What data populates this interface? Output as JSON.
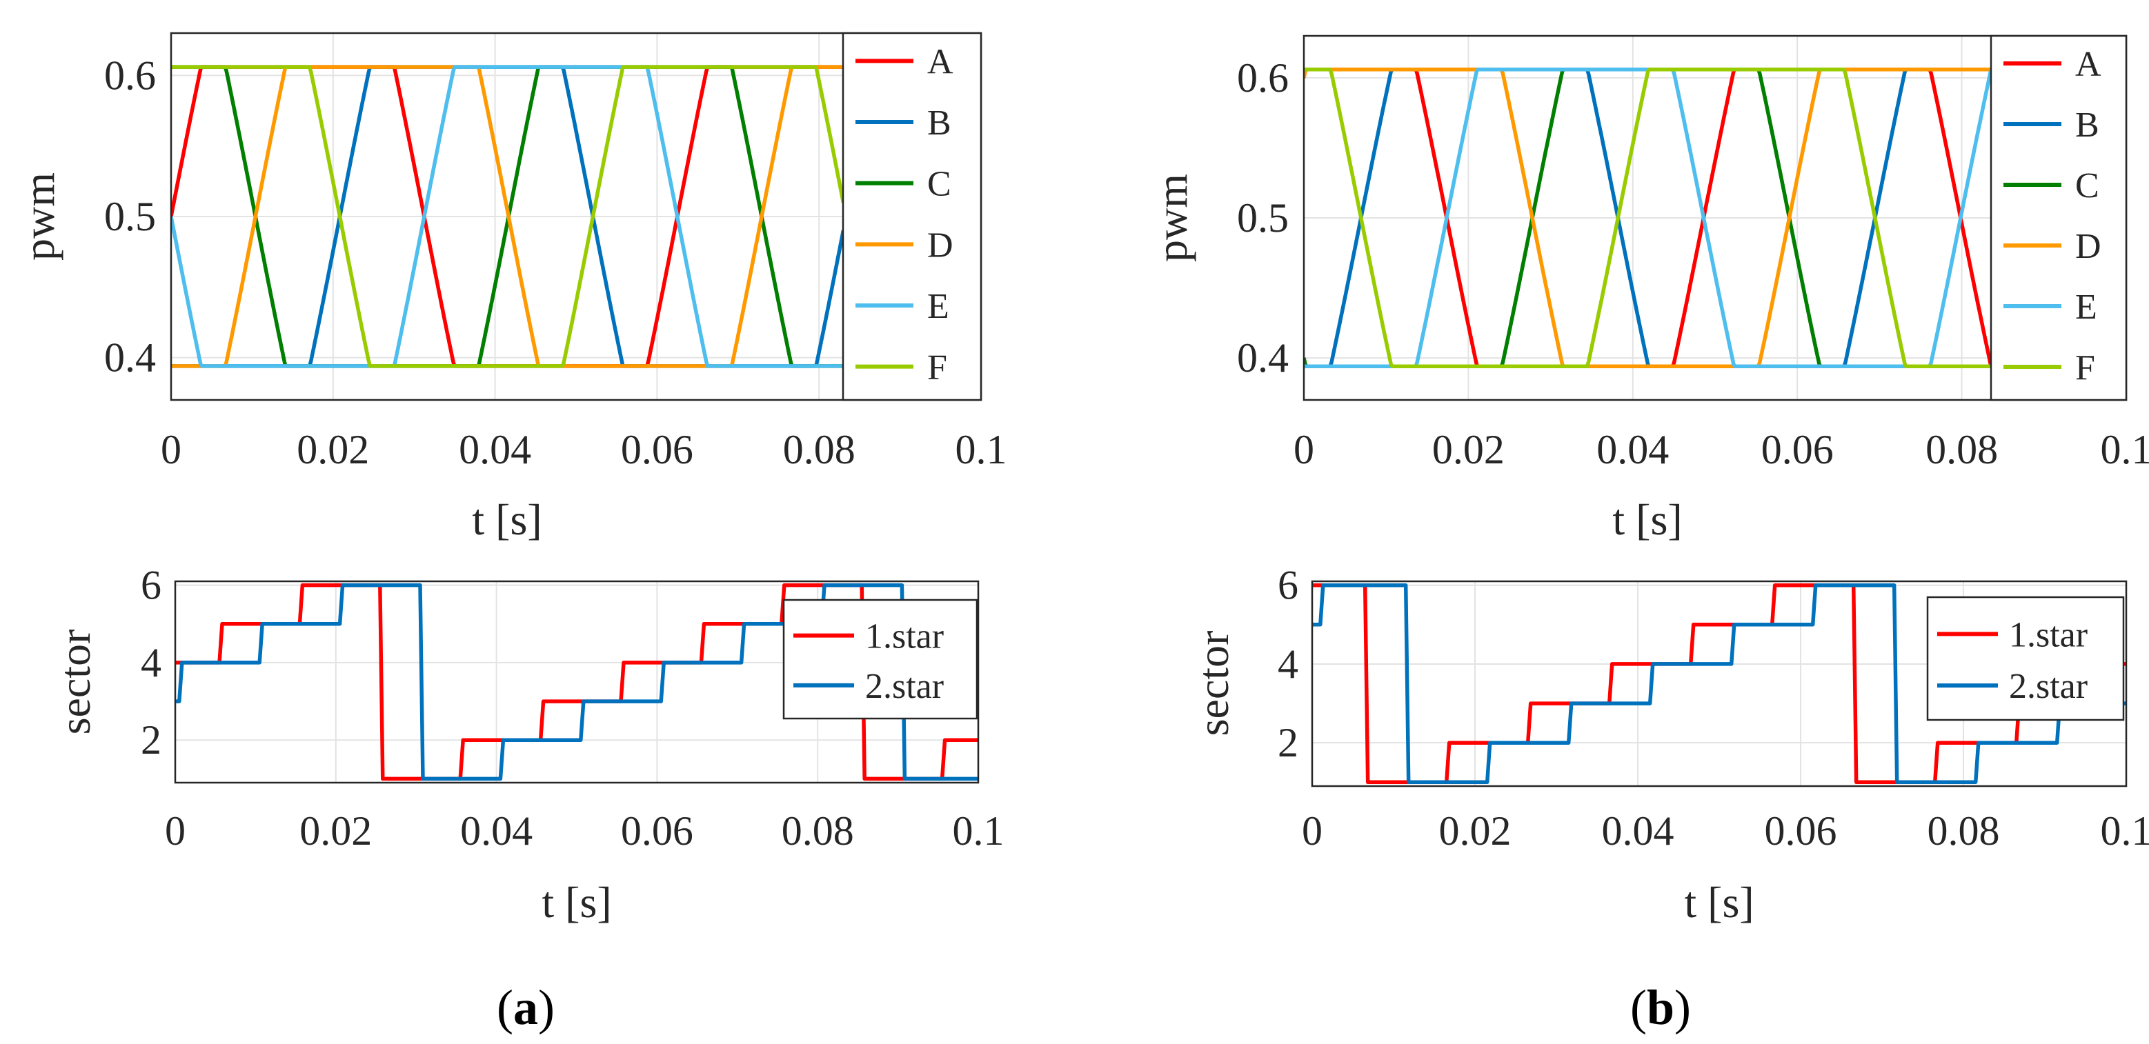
{
  "colors": {
    "A": "#ff0000",
    "B": "#0072bd",
    "C": "#007f00",
    "D": "#ff9900",
    "E": "#4dbeee",
    "F": "#99cc00",
    "star1": "#ff0000",
    "star2": "#0072bd",
    "grid": "#e3e3e3",
    "axis": "#262626"
  },
  "chart_data": [
    {
      "panel": "a",
      "type": "line",
      "title": "",
      "xlabel": "t [s]",
      "ylabel": "pwm",
      "xlim": [
        0,
        0.1
      ],
      "ylim": [
        0.37,
        0.63
      ],
      "xticks": [
        "0",
        "0.02",
        "0.04",
        "0.06",
        "0.08",
        "0.1"
      ],
      "xtick_values": [
        0,
        0.02,
        0.04,
        0.06,
        0.08,
        0.1
      ],
      "yticks": [
        "0.4",
        "0.5",
        "0.6"
      ],
      "ytick_values": [
        0.4,
        0.5,
        0.6
      ],
      "grid": true,
      "legend_position": "right-outside",
      "t_end": 0.083,
      "period": 0.0625,
      "series": [
        {
          "name": "A",
          "color_key": "A",
          "phase_deg": 0
        },
        {
          "name": "B",
          "color_key": "B",
          "phase_deg": -120
        },
        {
          "name": "C",
          "color_key": "C",
          "phase_deg": -240
        },
        {
          "name": "D",
          "color_key": "D",
          "phase_deg": -60
        },
        {
          "name": "E",
          "color_key": "E",
          "phase_deg": -180
        },
        {
          "name": "F",
          "color_key": "F",
          "phase_deg": -300
        }
      ],
      "phase_offset_deg": 0,
      "center": 0.5,
      "limit": 0.5,
      "peak_raw": 0.577,
      "scale": 0.2
    },
    {
      "panel": "a",
      "type": "line",
      "title": "",
      "xlabel": "t [s]",
      "ylabel": "sector",
      "xlim": [
        0,
        0.1
      ],
      "ylim": [
        0.9,
        6.1
      ],
      "xticks": [
        "0",
        "0.02",
        "0.04",
        "0.06",
        "0.08",
        "0.1"
      ],
      "xtick_values": [
        0,
        0.02,
        0.04,
        0.06,
        0.08,
        0.1
      ],
      "yticks": [
        "2",
        "4",
        "6"
      ],
      "ytick_values": [
        2,
        4,
        6
      ],
      "grid": true,
      "legend_position": "top-right",
      "series": [
        {
          "name": "1.star",
          "color_key": "star1",
          "steps": [
            [
              0,
              4
            ],
            [
              0.0055,
              5
            ],
            [
              0.0155,
              6
            ],
            [
              0.0255,
              1
            ],
            [
              0.0355,
              2
            ],
            [
              0.0455,
              3
            ],
            [
              0.0555,
              4
            ],
            [
              0.0655,
              5
            ],
            [
              0.0755,
              6
            ],
            [
              0.0855,
              1
            ],
            [
              0.0955,
              2
            ],
            [
              0.1,
              2
            ]
          ]
        },
        {
          "name": "2.star",
          "color_key": "star2",
          "steps": [
            [
              0,
              3
            ],
            [
              0.0005,
              4
            ],
            [
              0.0105,
              5
            ],
            [
              0.0205,
              6
            ],
            [
              0.0305,
              1
            ],
            [
              0.0405,
              2
            ],
            [
              0.0505,
              3
            ],
            [
              0.0605,
              4
            ],
            [
              0.0705,
              5
            ],
            [
              0.0805,
              6
            ],
            [
              0.0905,
              1
            ],
            [
              0.1,
              1
            ]
          ]
        }
      ]
    },
    {
      "panel": "b",
      "type": "line",
      "title": "",
      "xlabel": "t [s]",
      "ylabel": "pwm",
      "xlim": [
        0,
        0.1
      ],
      "ylim": [
        0.37,
        0.63
      ],
      "xticks": [
        "0",
        "0.02",
        "0.04",
        "0.06",
        "0.08",
        "0.1"
      ],
      "xtick_values": [
        0,
        0.02,
        0.04,
        0.06,
        0.08,
        0.1
      ],
      "yticks": [
        "0.4",
        "0.5",
        "0.6"
      ],
      "ytick_values": [
        0.4,
        0.5,
        0.6
      ],
      "grid": true,
      "legend_position": "right-outside",
      "t_end": 0.084,
      "period": 0.0625,
      "series": [
        {
          "name": "A",
          "color_key": "A",
          "phase_deg": 0
        },
        {
          "name": "B",
          "color_key": "B",
          "phase_deg": -120
        },
        {
          "name": "C",
          "color_key": "C",
          "phase_deg": -240
        },
        {
          "name": "D",
          "color_key": "D",
          "phase_deg": -60
        },
        {
          "name": "E",
          "color_key": "E",
          "phase_deg": -180
        },
        {
          "name": "F",
          "color_key": "F",
          "phase_deg": -300
        }
      ],
      "phase_offset_deg": 80,
      "center": 0.5,
      "limit": 0.5,
      "peak_raw": 0.577,
      "scale": 0.2
    },
    {
      "panel": "b",
      "type": "line",
      "title": "",
      "xlabel": "t [s]",
      "ylabel": "sector",
      "xlim": [
        0,
        0.1
      ],
      "ylim": [
        0.9,
        6.1
      ],
      "xticks": [
        "0",
        "0.02",
        "0.04",
        "0.06",
        "0.08",
        "0.1"
      ],
      "xtick_values": [
        0,
        0.02,
        0.04,
        0.06,
        0.08,
        0.1
      ],
      "yticks": [
        "2",
        "4",
        "6"
      ],
      "ytick_values": [
        2,
        4,
        6
      ],
      "grid": true,
      "legend_position": "top-right",
      "series": [
        {
          "name": "1.star",
          "color_key": "star1",
          "steps": [
            [
              0,
              6
            ],
            [
              0.0065,
              1
            ],
            [
              0.0165,
              2
            ],
            [
              0.0265,
              3
            ],
            [
              0.0365,
              4
            ],
            [
              0.0465,
              5
            ],
            [
              0.0565,
              6
            ],
            [
              0.0665,
              1
            ],
            [
              0.0765,
              2
            ],
            [
              0.0865,
              3
            ],
            [
              0.0965,
              4
            ],
            [
              0.1,
              4
            ]
          ]
        },
        {
          "name": "2.star",
          "color_key": "star2",
          "steps": [
            [
              0,
              5
            ],
            [
              0.001,
              6
            ],
            [
              0.0115,
              1
            ],
            [
              0.0215,
              2
            ],
            [
              0.0315,
              3
            ],
            [
              0.0415,
              4
            ],
            [
              0.0515,
              5
            ],
            [
              0.0615,
              6
            ],
            [
              0.0715,
              1
            ],
            [
              0.0815,
              2
            ],
            [
              0.0915,
              3
            ],
            [
              0.1,
              3
            ]
          ]
        }
      ]
    }
  ],
  "captions": [
    {
      "open": "(",
      "letter": "a",
      "close": ")"
    },
    {
      "open": "(",
      "letter": "b",
      "close": ")"
    }
  ]
}
